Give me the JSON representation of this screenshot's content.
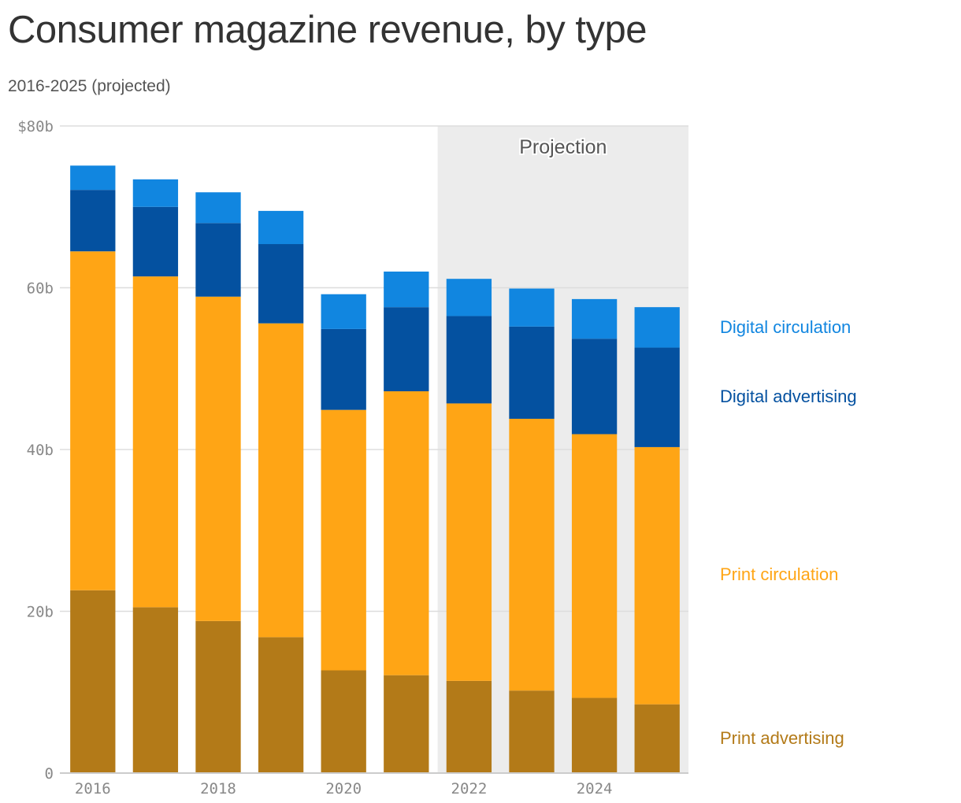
{
  "chart_data": {
    "type": "bar",
    "stacked": true,
    "title": "Consumer magazine revenue, by type",
    "subtitle": "2016-2025 (projected)",
    "categories": [
      2016,
      2017,
      2018,
      2019,
      2020,
      2021,
      2022,
      2023,
      2024,
      2025
    ],
    "series": [
      {
        "name": "Print advertising",
        "color": "#b37a18",
        "values": [
          22.6,
          20.5,
          18.8,
          16.8,
          12.7,
          12.1,
          11.4,
          10.2,
          9.3,
          8.5
        ]
      },
      {
        "name": "Print circulation",
        "color": "#ffa515",
        "values": [
          41.9,
          40.9,
          40.1,
          38.8,
          32.2,
          35.1,
          34.3,
          33.6,
          32.6,
          31.8
        ]
      },
      {
        "name": "Digital advertising",
        "color": "#0451a0",
        "values": [
          7.6,
          8.6,
          9.1,
          9.8,
          10.0,
          10.4,
          10.8,
          11.4,
          11.8,
          12.3
        ]
      },
      {
        "name": "Digital circulation",
        "color": "#1186e0",
        "values": [
          3.0,
          3.4,
          3.8,
          4.1,
          4.3,
          4.4,
          4.6,
          4.7,
          4.9,
          5.0
        ]
      }
    ],
    "ylim": [
      0,
      80
    ],
    "yticks": [
      0,
      20,
      40,
      60,
      80
    ],
    "ytick_labels": [
      "0",
      "20b",
      "40b",
      "60b",
      "$80b"
    ],
    "xticks": [
      2016,
      2018,
      2020,
      2022,
      2024
    ],
    "xtick_labels": [
      "2016",
      "2018",
      "2020",
      "2022",
      "2024"
    ],
    "projection": {
      "label": "Projection",
      "start": 2022,
      "end": 2025
    },
    "legend_placement": "right, inline with bar stacks",
    "grid": true
  }
}
